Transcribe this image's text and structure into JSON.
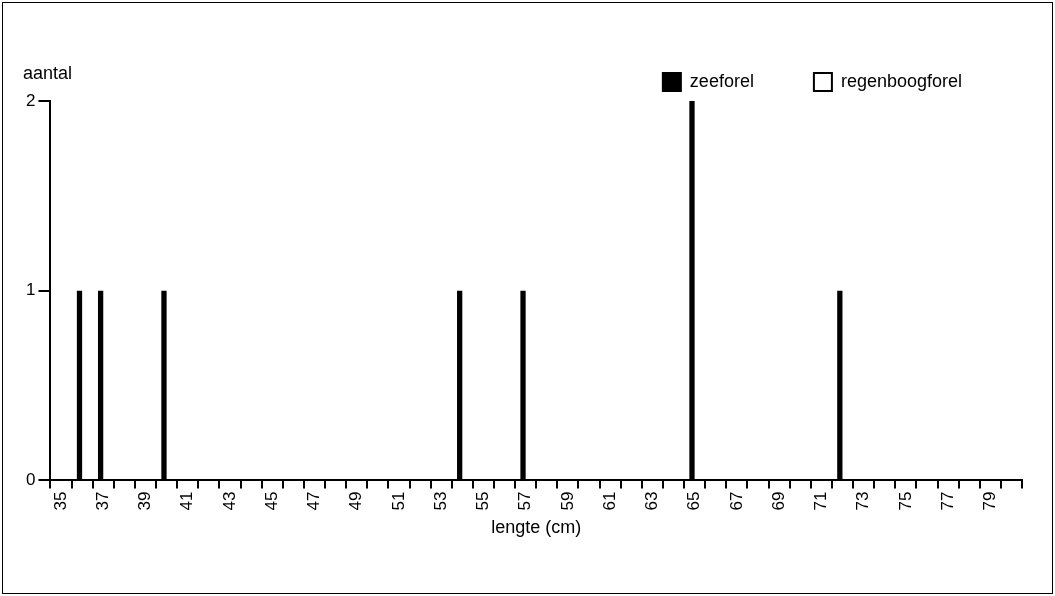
{
  "chart_data": {
    "type": "bar",
    "xlabel": "lengte (cm)",
    "ylabel": "aantal",
    "categories": [
      "35",
      null,
      "37",
      null,
      "39",
      null,
      "41",
      null,
      "43",
      null,
      "45",
      null,
      "47",
      null,
      "49",
      null,
      "51",
      null,
      "53",
      null,
      "55",
      null,
      "57",
      null,
      "59",
      null,
      "61",
      null,
      "63",
      null,
      "65",
      null,
      "67",
      null,
      "69",
      null,
      "71",
      null,
      "73",
      null,
      "75",
      null,
      "77",
      null,
      "79",
      null
    ],
    "series": [
      {
        "name": "zeeforel",
        "color": "#000000",
        "values": [
          0,
          1,
          1,
          0,
          0,
          1,
          0,
          0,
          0,
          0,
          0,
          0,
          0,
          0,
          0,
          0,
          0,
          0,
          0,
          1,
          0,
          0,
          1,
          0,
          0,
          0,
          0,
          0,
          0,
          0,
          2,
          0,
          0,
          0,
          0,
          0,
          0,
          1,
          0,
          0,
          0,
          0,
          0,
          0,
          0,
          0
        ]
      },
      {
        "name": "regenboogforel",
        "color": "#ffffff",
        "values": [
          0,
          0,
          0,
          0,
          0,
          0,
          0,
          0,
          0,
          0,
          0,
          0,
          0,
          0,
          0,
          0,
          0,
          0,
          0,
          0,
          0,
          0,
          0,
          0,
          0,
          0,
          0,
          0,
          0,
          0,
          0,
          0,
          0,
          0,
          0,
          0,
          0,
          0,
          0,
          0,
          0,
          0,
          0,
          0,
          0,
          0
        ]
      }
    ],
    "ylim": [
      0,
      2
    ],
    "yticks": [
      0,
      1,
      2
    ],
    "grid": false,
    "legend": "top right"
  }
}
